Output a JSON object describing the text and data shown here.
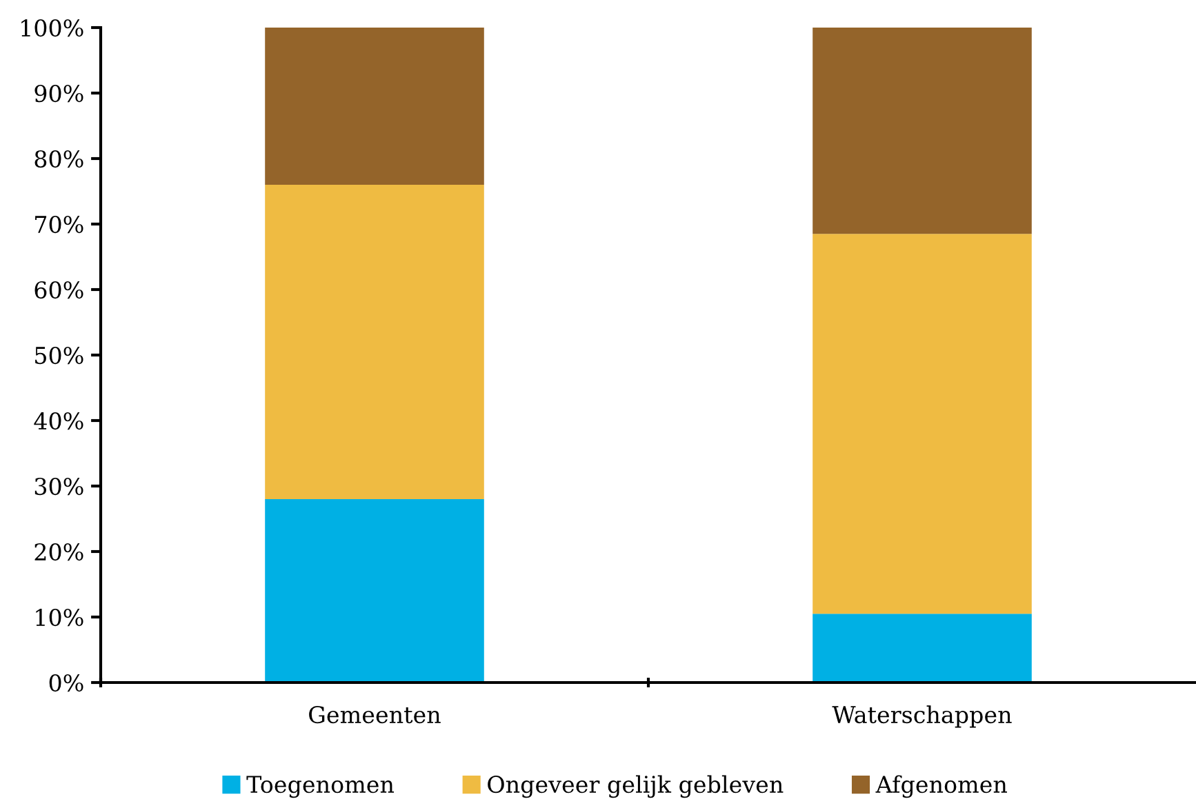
{
  "chart_data": {
    "type": "bar",
    "stacked": true,
    "categories": [
      "Gemeenten",
      "Waterschappen"
    ],
    "series": [
      {
        "name": "Toegenomen",
        "color": "#00b0e4",
        "values": [
          28,
          10.5
        ]
      },
      {
        "name": "Ongeveer gelijk gebleven",
        "color": "#efbb42",
        "values": [
          48,
          58
        ]
      },
      {
        "name": "Afgenomen",
        "color": "#94642a",
        "values": [
          24,
          31.5
        ]
      }
    ],
    "ylim": [
      0,
      100
    ],
    "yticks": [
      {
        "value": 0,
        "label": "0%"
      },
      {
        "value": 10,
        "label": "10%"
      },
      {
        "value": 20,
        "label": "20%"
      },
      {
        "value": 30,
        "label": "30%"
      },
      {
        "value": 40,
        "label": "40%"
      },
      {
        "value": 50,
        "label": "50%"
      },
      {
        "value": 60,
        "label": "60%"
      },
      {
        "value": 70,
        "label": "70%"
      },
      {
        "value": 80,
        "label": "80%"
      },
      {
        "value": 90,
        "label": "90%"
      },
      {
        "value": 100,
        "label": "100%"
      }
    ],
    "grid": false,
    "legend": "bottom"
  }
}
